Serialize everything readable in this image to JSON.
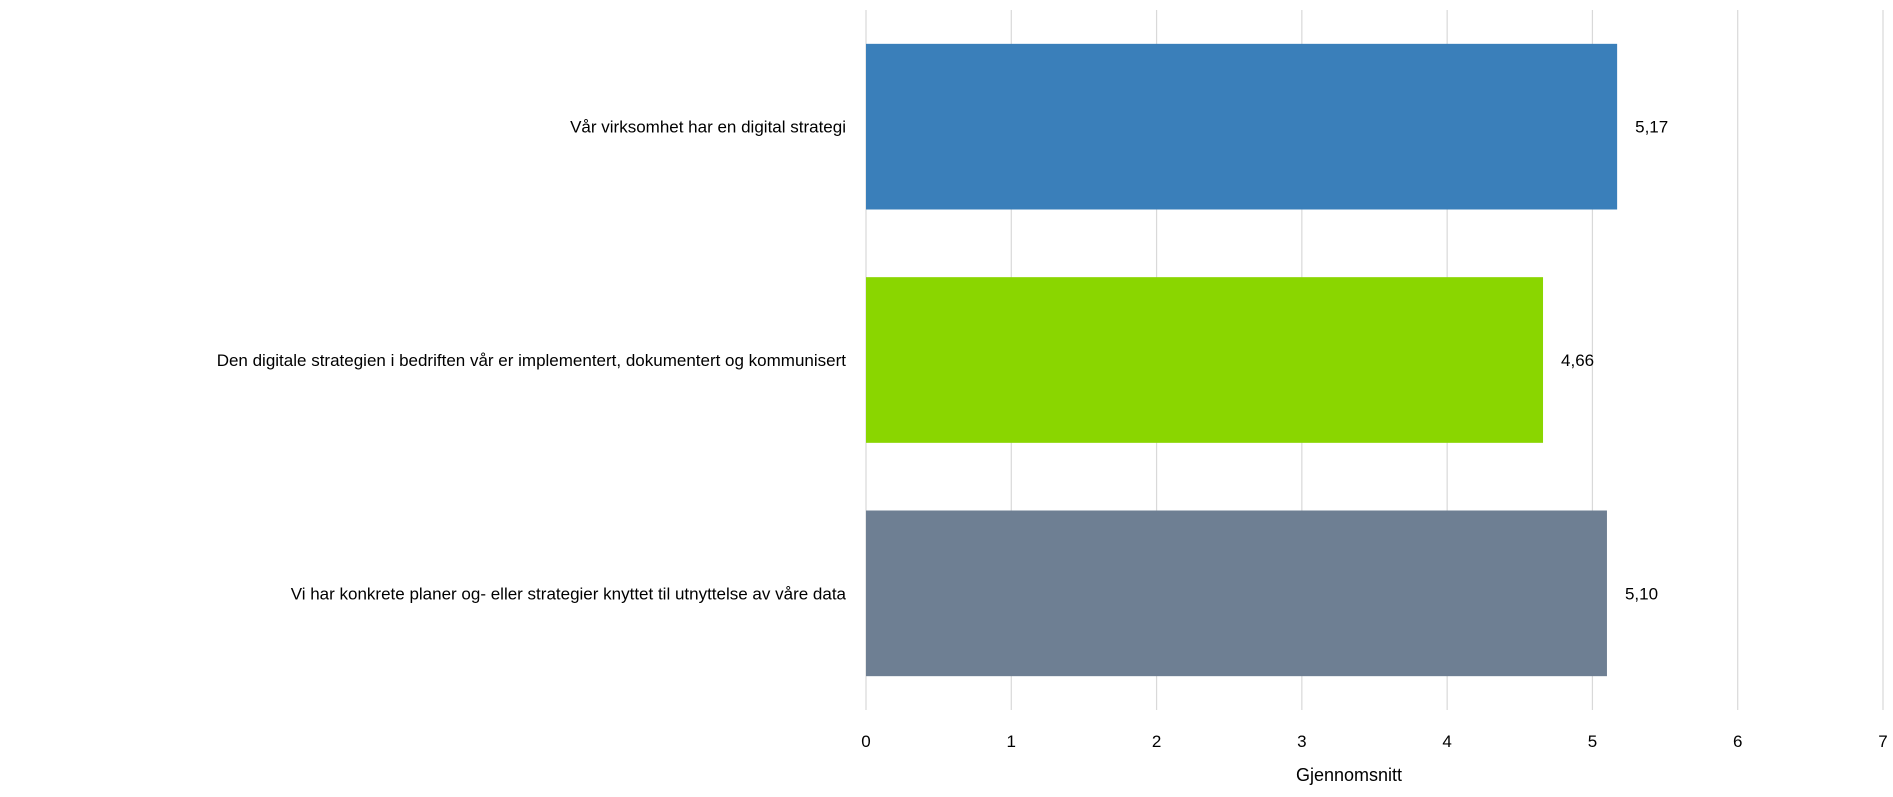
{
  "chart_data": {
    "type": "bar",
    "orientation": "horizontal",
    "categories": [
      "Vår virksomhet har en digital strategi",
      "Den digitale strategien i bedriften vår er implementert, dokumentert og kommunisert",
      "Vi har konkrete planer og- eller strategier knyttet til utnyttelse av våre data"
    ],
    "values": [
      5.17,
      4.66,
      5.1
    ],
    "value_labels": [
      "5,17",
      "4,66",
      "5,10"
    ],
    "colors": [
      "#3a7fba",
      "#8ad600",
      "#6e7f93"
    ],
    "xlabel": "Gjennomsnitt",
    "xlim": [
      0,
      7
    ],
    "x_ticks": [
      0,
      1,
      2,
      3,
      4,
      5,
      6,
      7
    ],
    "x_tick_labels": [
      "0",
      "1",
      "2",
      "3",
      "4",
      "5",
      "6",
      "7"
    ],
    "grid": "vertical",
    "legend": "none"
  }
}
